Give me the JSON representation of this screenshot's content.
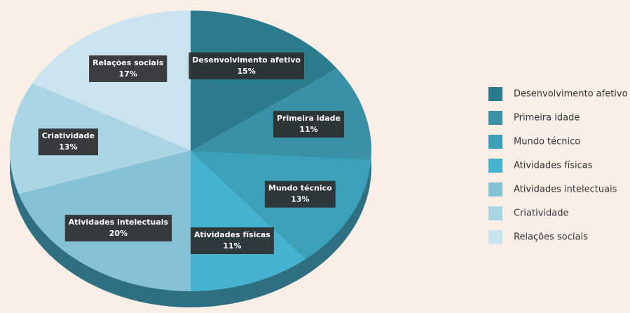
{
  "chart_data": {
    "type": "pie",
    "categories": [
      "Desenvolvimento afetivo",
      "Primeira idade",
      "Mundo técnico",
      "Atividades físicas",
      "Atividades intelectuais",
      "Criatividade",
      "Relações sociais"
    ],
    "values": [
      15,
      11,
      13,
      11,
      20,
      13,
      17
    ],
    "value_labels": [
      "15%",
      "11%",
      "13%",
      "11%",
      "20%",
      "13%",
      "17%"
    ],
    "colors": [
      "#2b7b8d",
      "#3a90a5",
      "#3aa1b9",
      "#45b2cf",
      "#86c2d5",
      "#a9d5e4",
      "#cae4ef"
    ],
    "legend": "right"
  }
}
